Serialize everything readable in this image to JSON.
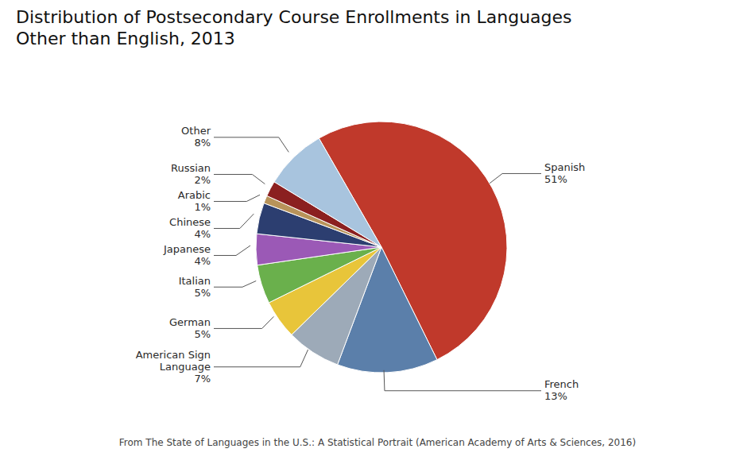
{
  "chart_data": {
    "type": "pie",
    "title": "Distribution of Postsecondary Course Enrollments in Languages\nOther than English, 2013",
    "categories": [
      "Spanish",
      "French",
      "American Sign\nLanguage",
      "German",
      "Italian",
      "Japanese",
      "Chinese",
      "Arabic",
      "Russian",
      "Other"
    ],
    "values": [
      51,
      13,
      7,
      5,
      5,
      4,
      4,
      1,
      2,
      8
    ],
    "value_labels": [
      "51%",
      "13%",
      "7%",
      "5%",
      "5%",
      "4%",
      "4%",
      "1%",
      "2%",
      "8%"
    ],
    "colors": [
      "#c0392b",
      "#5b7faa",
      "#9daab8",
      "#e8c53a",
      "#6ab04c",
      "#9b59b6",
      "#2c3e70",
      "#b8935a",
      "#8b2020",
      "#a8c4de"
    ],
    "data_labels": true,
    "footnote": "From The State of Languages in the U.S.: A Statistical Portrait (American Academy of Arts & Sciences, 2016)"
  }
}
